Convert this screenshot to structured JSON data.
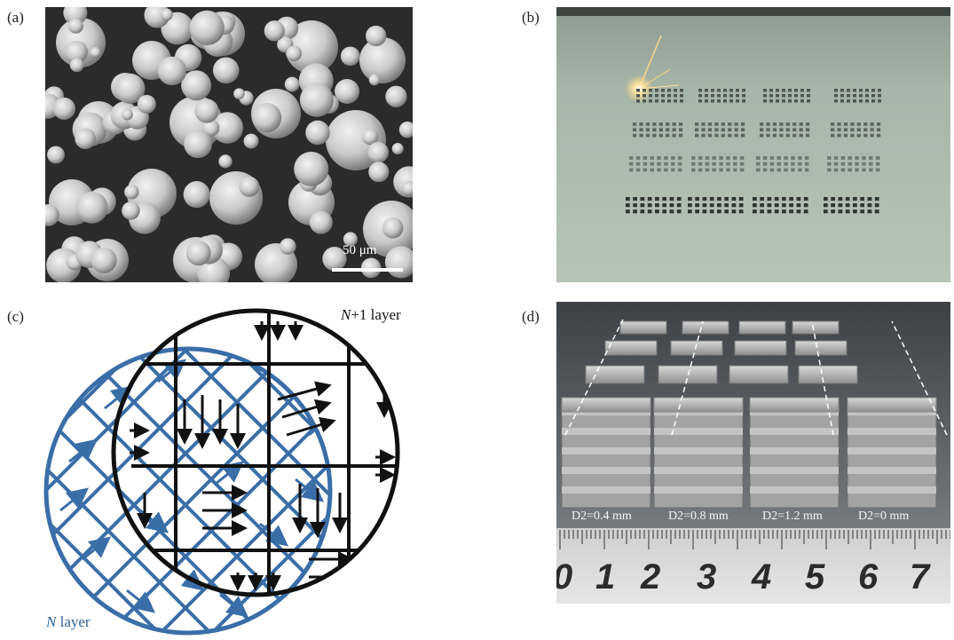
{
  "panels": {
    "a": {
      "label": "(a)",
      "scale_bar": "50 μm"
    },
    "b": {
      "label": "(b)"
    },
    "c": {
      "label": "(c)",
      "upper_layer": "N+1 layer",
      "lower_layer": "N layer",
      "colors": {
        "n_layer": "#3a6ea8",
        "n_plus_1_layer": "#111111"
      }
    },
    "d": {
      "label": "(d)",
      "spacing_labels": [
        "D2=0.4 mm",
        "D2=0.8 mm",
        "D2=1.2 mm",
        "D2=0 mm"
      ],
      "ruler_numbers": [
        "0",
        "1",
        "2",
        "3",
        "4",
        "5",
        "6",
        "7"
      ]
    }
  }
}
